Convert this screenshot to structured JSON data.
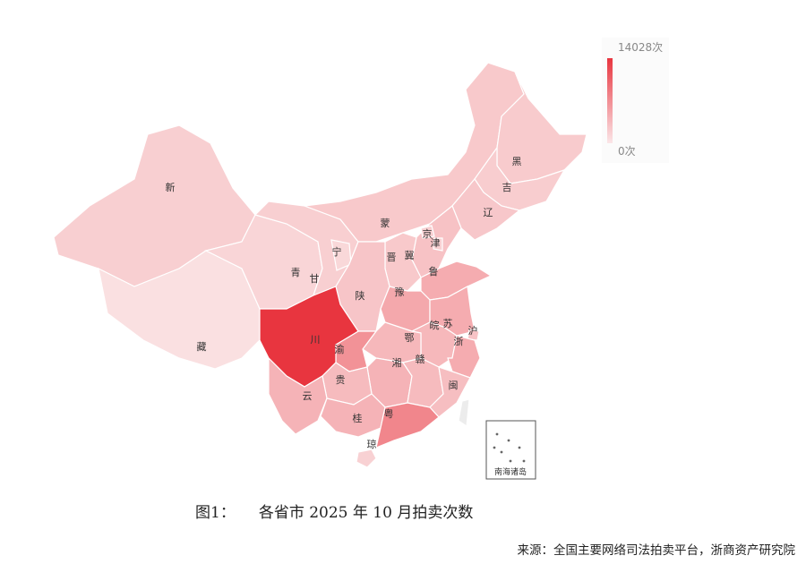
{
  "legend": {
    "max_label": "14028次",
    "min_label": "0次",
    "max": 14028,
    "min": 0,
    "color_high": "#e8353f",
    "color_low": "#fbe9ea"
  },
  "provinces": [
    {
      "id": "xinjiang",
      "label": "新",
      "value": 900
    },
    {
      "id": "tibet",
      "label": "藏",
      "value": 200
    },
    {
      "id": "qinghai",
      "label": "青",
      "value": 600
    },
    {
      "id": "gansu",
      "label": "甘",
      "value": 900
    },
    {
      "id": "neimenggu",
      "label": "蒙",
      "value": 1200
    },
    {
      "id": "heilongjiang",
      "label": "黑",
      "value": 1100
    },
    {
      "id": "jilin",
      "label": "吉",
      "value": 1000
    },
    {
      "id": "liaoning",
      "label": "辽",
      "value": 1300
    },
    {
      "id": "hebei",
      "label": "冀",
      "value": 1600
    },
    {
      "id": "beijing",
      "label": "京",
      "value": 900
    },
    {
      "id": "tianjin",
      "label": "津",
      "value": 800
    },
    {
      "id": "shanxi",
      "label": "晋",
      "value": 1200
    },
    {
      "id": "ningxia",
      "label": "宁",
      "value": 500
    },
    {
      "id": "shaanxi",
      "label": "陕",
      "value": 1400
    },
    {
      "id": "shandong",
      "label": "鲁",
      "value": 3000
    },
    {
      "id": "henan",
      "label": "豫",
      "value": 3300
    },
    {
      "id": "jiangsu",
      "label": "苏",
      "value": 3000
    },
    {
      "id": "anhui",
      "label": "皖",
      "value": 2200
    },
    {
      "id": "shanghai",
      "label": "沪",
      "value": 1500
    },
    {
      "id": "zhejiang",
      "label": "浙",
      "value": 3000
    },
    {
      "id": "hubei",
      "label": "鄂",
      "value": 2200
    },
    {
      "id": "chongqing",
      "label": "渝",
      "value": 5000
    },
    {
      "id": "sichuan",
      "label": "川",
      "value": 14028
    },
    {
      "id": "hunan",
      "label": "湘",
      "value": 2500
    },
    {
      "id": "jiangxi",
      "label": "赣",
      "value": 2000
    },
    {
      "id": "fujian",
      "label": "闽",
      "value": 1800
    },
    {
      "id": "guizhou",
      "label": "贵",
      "value": 2000
    },
    {
      "id": "yunnan",
      "label": "云",
      "value": 2500
    },
    {
      "id": "guangxi",
      "label": "桂",
      "value": 2500
    },
    {
      "id": "guangdong",
      "label": "粤",
      "value": 6000
    },
    {
      "id": "hainan",
      "label": "琼",
      "value": 800
    },
    {
      "id": "taiwan",
      "label": "",
      "value": 0
    }
  ],
  "inset": {
    "label": "南海诸岛"
  },
  "caption": {
    "number": "图1：",
    "title": "各省市 2025 年 10 月拍卖次数"
  },
  "source": "来源：全国主要网络司法拍卖平台，浙商资产研究院"
}
